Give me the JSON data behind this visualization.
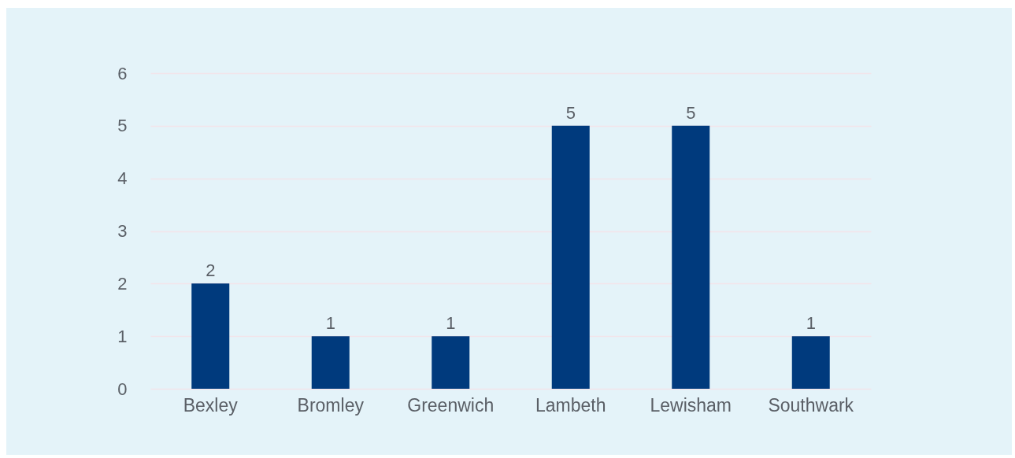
{
  "chart_data": {
    "type": "bar",
    "categories": [
      "Bexley",
      "Bromley",
      "Greenwich",
      "Lambeth",
      "Lewisham",
      "Southwark"
    ],
    "values": [
      2,
      1,
      1,
      5,
      5,
      1
    ],
    "color": "#003a7d",
    "ylim": [
      0,
      6
    ],
    "yticks": [
      0,
      1,
      2,
      3,
      4,
      5,
      6
    ],
    "grid": "y",
    "data_labels": true
  }
}
